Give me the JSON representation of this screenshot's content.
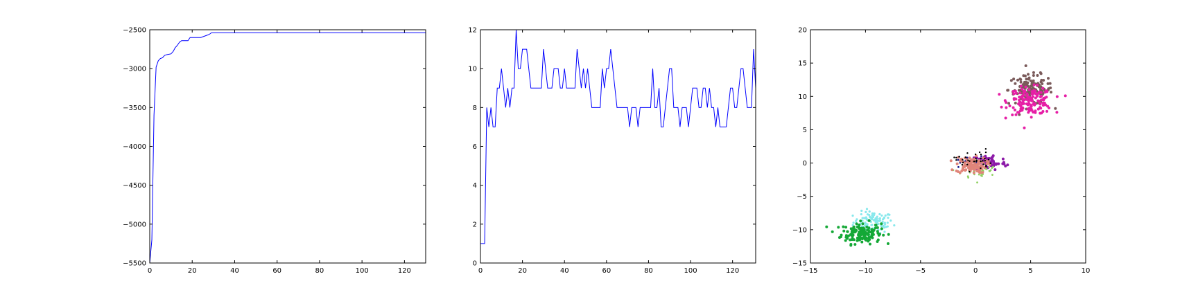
{
  "chart_data": [
    {
      "type": "line",
      "xlim": [
        0,
        130
      ],
      "ylim": [
        -5500,
        -2500
      ],
      "xticks": [
        0,
        20,
        40,
        60,
        80,
        100,
        120
      ],
      "yticks": [
        -5500,
        -5000,
        -4500,
        -4000,
        -3500,
        -3000,
        -2500
      ],
      "grid": false,
      "series": [
        {
          "color": "#0000ff",
          "x": [
            0,
            1,
            2,
            3,
            4,
            5,
            6,
            7,
            8,
            10,
            11,
            12,
            13,
            14,
            15,
            18,
            19,
            20,
            24,
            25,
            26,
            27,
            28,
            29,
            130
          ],
          "y": [
            -5500,
            -5200,
            -3600,
            -2980,
            -2900,
            -2870,
            -2860,
            -2830,
            -2820,
            -2810,
            -2780,
            -2730,
            -2700,
            -2660,
            -2640,
            -2640,
            -2600,
            -2600,
            -2600,
            -2590,
            -2580,
            -2570,
            -2560,
            -2540,
            -2540
          ]
        }
      ]
    },
    {
      "type": "line",
      "xlim": [
        0,
        131
      ],
      "ylim": [
        0,
        12
      ],
      "xticks": [
        0,
        20,
        40,
        60,
        80,
        100,
        120
      ],
      "yticks": [
        0,
        2,
        4,
        6,
        8,
        10,
        12
      ],
      "grid": false,
      "series": [
        {
          "color": "#0000ff",
          "x": [
            0,
            1,
            2,
            3,
            4,
            5,
            6,
            7,
            8,
            9,
            10,
            11,
            12,
            13,
            14,
            15,
            16,
            17,
            18,
            19,
            20,
            21,
            22,
            23,
            24,
            25,
            26,
            27,
            28,
            29,
            30,
            31,
            32,
            33,
            34,
            35,
            36,
            37,
            38,
            39,
            40,
            41,
            42,
            43,
            44,
            45,
            46,
            47,
            48,
            49,
            50,
            51,
            52,
            53,
            54,
            55,
            56,
            57,
            58,
            59,
            60,
            61,
            62,
            63,
            64,
            65,
            66,
            67,
            68,
            69,
            70,
            71,
            72,
            73,
            74,
            75,
            76,
            77,
            78,
            79,
            80,
            81,
            82,
            83,
            84,
            85,
            86,
            87,
            88,
            89,
            90,
            91,
            92,
            93,
            94,
            95,
            96,
            97,
            98,
            99,
            100,
            101,
            102,
            103,
            104,
            105,
            106,
            107,
            108,
            109,
            110,
            111,
            112,
            113,
            114,
            115,
            116,
            117,
            118,
            119,
            120,
            121,
            122,
            123,
            124,
            125,
            126,
            127,
            128,
            129,
            130,
            131
          ],
          "y": [
            1,
            1,
            1,
            8,
            7,
            8,
            7,
            7,
            9,
            9,
            10,
            9,
            8,
            9,
            8,
            9,
            9,
            12,
            10,
            10,
            11,
            11,
            11,
            10,
            9,
            9,
            9,
            9,
            9,
            9,
            11,
            10,
            9,
            9,
            9,
            10,
            10,
            10,
            9,
            9,
            10,
            9,
            9,
            9,
            9,
            9,
            11,
            10,
            9,
            10,
            9,
            10,
            9,
            8,
            8,
            8,
            8,
            8,
            10,
            9,
            10,
            10,
            11,
            10,
            9,
            8,
            8,
            8,
            8,
            8,
            8,
            7,
            8,
            8,
            8,
            7,
            8,
            8,
            8,
            8,
            8,
            8,
            10,
            8,
            8,
            9,
            7,
            7,
            8,
            9,
            10,
            10,
            8,
            8,
            8,
            7,
            8,
            8,
            8,
            7,
            8,
            9,
            9,
            9,
            8,
            8,
            9,
            9,
            8,
            9,
            8,
            8,
            7,
            8,
            7,
            7,
            7,
            7,
            8,
            9,
            9,
            8,
            8,
            9,
            10,
            10,
            9,
            8,
            8,
            8,
            11,
            9
          ]
        }
      ]
    },
    {
      "type": "scatter",
      "xlim": [
        -15,
        10
      ],
      "ylim": [
        -15,
        20
      ],
      "xticks": [
        -15,
        -10,
        -5,
        0,
        5,
        10
      ],
      "yticks": [
        -15,
        -10,
        -5,
        0,
        5,
        10,
        15,
        20
      ],
      "grid": false,
      "clusters": [
        {
          "color": "#87e8ec",
          "center": [
            -9.3,
            -8.9
          ],
          "spread": [
            0.9,
            0.8
          ],
          "n": 110,
          "size": 1.6
        },
        {
          "color": "#14a836",
          "center": [
            -10.4,
            -10.5
          ],
          "spread": [
            0.9,
            0.8
          ],
          "n": 150,
          "size": 2.0
        },
        {
          "color": "#7a5a5a",
          "center": [
            5.0,
            11.0
          ],
          "spread": [
            1.0,
            1.1
          ],
          "n": 140,
          "size": 2.0
        },
        {
          "color": "#e61fa6",
          "center": [
            5.0,
            9.3
          ],
          "spread": [
            1.0,
            1.0
          ],
          "n": 160,
          "size": 2.0
        },
        {
          "color": "#1a1a8c",
          "center": [
            -0.9,
            0.0
          ],
          "spread": [
            0.7,
            0.5
          ],
          "n": 25,
          "size": 1.4
        },
        {
          "color": "#8c1aa8",
          "center": [
            1.2,
            0.1
          ],
          "spread": [
            0.8,
            0.6
          ],
          "n": 70,
          "size": 2.0
        },
        {
          "color": "#90d060",
          "center": [
            0.3,
            -1.2
          ],
          "spread": [
            0.8,
            0.6
          ],
          "n": 40,
          "size": 1.4
        },
        {
          "color": "#e0857a",
          "center": [
            -0.4,
            -0.3
          ],
          "spread": [
            0.7,
            0.6
          ],
          "n": 110,
          "size": 2.0
        },
        {
          "color": "#000000",
          "center": [
            -0.2,
            0.5
          ],
          "spread": [
            0.8,
            0.8
          ],
          "n": 35,
          "size": 1.2
        }
      ]
    }
  ]
}
